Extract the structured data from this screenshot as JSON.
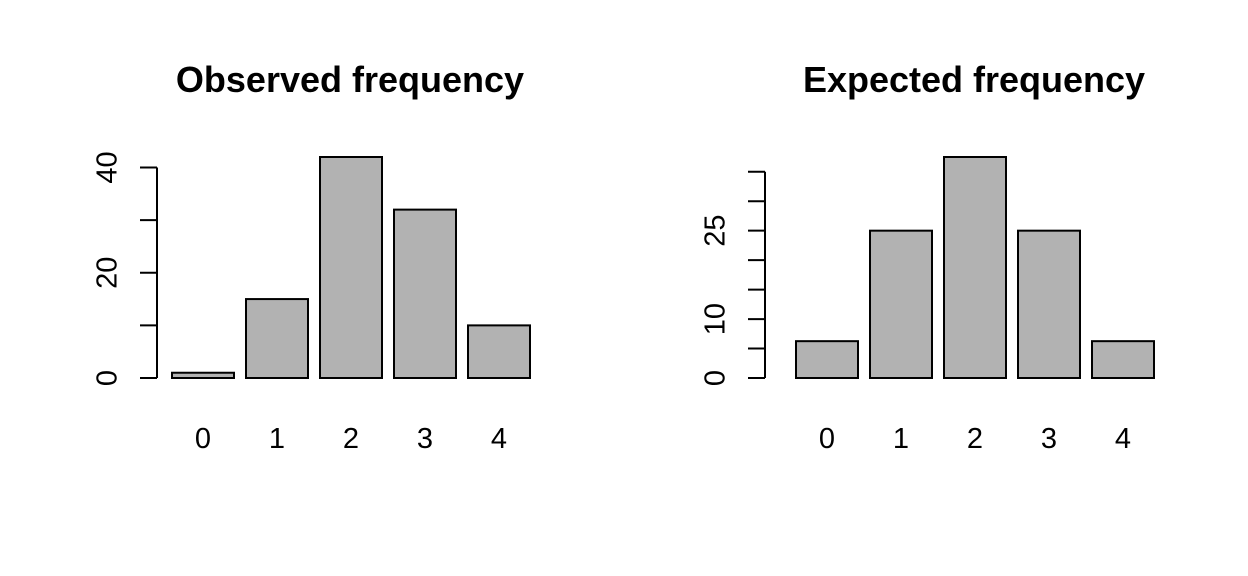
{
  "chart_data": [
    {
      "type": "bar",
      "title": "Observed frequency",
      "xlabel": "",
      "ylabel": "",
      "categories": [
        "0",
        "1",
        "2",
        "3",
        "4"
      ],
      "values": [
        1,
        15,
        42,
        32,
        10
      ],
      "ylim": [
        0,
        42
      ],
      "yticks": [
        0,
        10,
        20,
        30,
        40
      ],
      "ytick_labels": [
        "0",
        "",
        "20",
        "",
        "40"
      ],
      "bar_color": "#b2b2b2",
      "grid": false
    },
    {
      "type": "bar",
      "title": "Expected frequency",
      "xlabel": "",
      "ylabel": "",
      "categories": [
        "0",
        "1",
        "2",
        "3",
        "4"
      ],
      "values": [
        6.25,
        25,
        37.5,
        25,
        6.25
      ],
      "ylim": [
        0,
        37.5
      ],
      "yticks": [
        0,
        5,
        10,
        15,
        20,
        25,
        30,
        35
      ],
      "ytick_labels": [
        "0",
        "",
        "10",
        "",
        "",
        "25",
        "",
        ""
      ],
      "bar_color": "#b2b2b2",
      "grid": false
    }
  ]
}
